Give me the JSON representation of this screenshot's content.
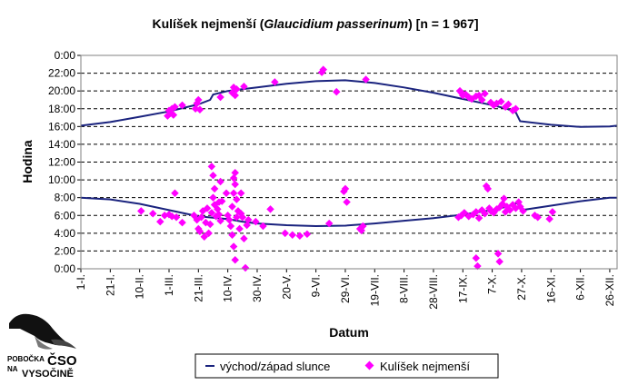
{
  "chart_data": {
    "type": "scatter",
    "title_prefix": "Kulíšek nejmenší (",
    "title_italic": "Glaucidium passerinum",
    "title_suffix": ") [n = 1 967]",
    "xlabel": "Datum",
    "ylabel": "Hodina",
    "ylim": [
      0,
      24
    ],
    "y_ticks": [
      {
        "v": 0,
        "label": "0:00"
      },
      {
        "v": 2,
        "label": "2:00"
      },
      {
        "v": 4,
        "label": "4:00"
      },
      {
        "v": 6,
        "label": "6:00"
      },
      {
        "v": 8,
        "label": "8:00"
      },
      {
        "v": 10,
        "label": "10:00"
      },
      {
        "v": 12,
        "label": "12:00"
      },
      {
        "v": 14,
        "label": "14:00"
      },
      {
        "v": 16,
        "label": "16:00"
      },
      {
        "v": 18,
        "label": "18:00"
      },
      {
        "v": 20,
        "label": "20:00"
      },
      {
        "v": 22,
        "label": "22:00"
      },
      {
        "v": 24,
        "label": "0:00"
      }
    ],
    "xlim": [
      1,
      366
    ],
    "x_ticks": [
      {
        "day": 1,
        "label": "1-I."
      },
      {
        "day": 21,
        "label": "21-I."
      },
      {
        "day": 41,
        "label": "10-II."
      },
      {
        "day": 61,
        "label": "1-III."
      },
      {
        "day": 81,
        "label": "21-III."
      },
      {
        "day": 101,
        "label": "10-IV."
      },
      {
        "day": 121,
        "label": "30-IV."
      },
      {
        "day": 141,
        "label": "20-V."
      },
      {
        "day": 161,
        "label": "9-VI."
      },
      {
        "day": 181,
        "label": "29-VI."
      },
      {
        "day": 201,
        "label": "19-VII."
      },
      {
        "day": 221,
        "label": "8-VIII."
      },
      {
        "day": 241,
        "label": "28-VIII."
      },
      {
        "day": 261,
        "label": "17-IX."
      },
      {
        "day": 281,
        "label": "7-X."
      },
      {
        "day": 301,
        "label": "27-X."
      },
      {
        "day": 321,
        "label": "16-XI."
      },
      {
        "day": 341,
        "label": "6-XII."
      },
      {
        "day": 361,
        "label": "26-XII."
      }
    ],
    "grid": "horizontal-dashed",
    "legend_position": "bottom",
    "series": [
      {
        "name": "východ/západ slunce",
        "color": "#1a237e",
        "sunrise": [
          [
            1,
            8.0
          ],
          [
            21,
            7.8
          ],
          [
            41,
            7.3
          ],
          [
            61,
            6.6
          ],
          [
            81,
            5.9
          ],
          [
            101,
            5.6
          ],
          [
            111,
            5.3
          ],
          [
            121,
            5.1
          ],
          [
            141,
            4.9
          ],
          [
            161,
            4.8
          ],
          [
            181,
            4.85
          ],
          [
            201,
            5.1
          ],
          [
            221,
            5.4
          ],
          [
            241,
            5.7
          ],
          [
            261,
            6.1
          ],
          [
            281,
            6.6
          ],
          [
            291,
            7.0
          ],
          [
            298,
            7.4
          ],
          [
            301,
            6.6
          ],
          [
            321,
            7.1
          ],
          [
            341,
            7.6
          ],
          [
            361,
            8.0
          ],
          [
            366,
            8.0
          ]
        ],
        "sunset": [
          [
            1,
            16.1
          ],
          [
            21,
            16.5
          ],
          [
            41,
            17.1
          ],
          [
            61,
            17.7
          ],
          [
            81,
            18.5
          ],
          [
            89,
            19.0
          ],
          [
            91,
            19.6
          ],
          [
            101,
            20.0
          ],
          [
            121,
            20.4
          ],
          [
            141,
            20.8
          ],
          [
            161,
            21.1
          ],
          [
            181,
            21.2
          ],
          [
            201,
            20.9
          ],
          [
            221,
            20.4
          ],
          [
            241,
            19.8
          ],
          [
            261,
            19.1
          ],
          [
            281,
            18.4
          ],
          [
            291,
            18.0
          ],
          [
            297,
            17.6
          ],
          [
            300,
            16.6
          ],
          [
            321,
            16.2
          ],
          [
            341,
            15.95
          ],
          [
            361,
            16.0
          ],
          [
            366,
            16.1
          ]
        ]
      },
      {
        "name": "Kulíšek nejmenší",
        "color": "#ff00ff",
        "points": [
          [
            42,
            6.5
          ],
          [
            50,
            6.2
          ],
          [
            55,
            5.3
          ],
          [
            58,
            6.0
          ],
          [
            61,
            6.1
          ],
          [
            63,
            5.9
          ],
          [
            65,
            8.5
          ],
          [
            66,
            5.8
          ],
          [
            70,
            5.2
          ],
          [
            60,
            17.2
          ],
          [
            61,
            17.8
          ],
          [
            62,
            17.5
          ],
          [
            63,
            18.0
          ],
          [
            64,
            17.3
          ],
          [
            65,
            18.2
          ],
          [
            70,
            18.4
          ],
          [
            79,
            18.0
          ],
          [
            80,
            18.6
          ],
          [
            81,
            19.0
          ],
          [
            82,
            17.9
          ],
          [
            78,
            6.0
          ],
          [
            80,
            5.5
          ],
          [
            81,
            4.5
          ],
          [
            82,
            4.2
          ],
          [
            83,
            5.8
          ],
          [
            84,
            6.5
          ],
          [
            85,
            3.6
          ],
          [
            86,
            5.2
          ],
          [
            87,
            6.8
          ],
          [
            88,
            4.0
          ],
          [
            89,
            5.0
          ],
          [
            90,
            6.3
          ],
          [
            91,
            8.0
          ],
          [
            92,
            7.2
          ],
          [
            93,
            5.9
          ],
          [
            94,
            6.7
          ],
          [
            95,
            6.1
          ],
          [
            96,
            5.4
          ],
          [
            97,
            7.6
          ],
          [
            90,
            11.5
          ],
          [
            91,
            10.5
          ],
          [
            92,
            9.0
          ],
          [
            95,
            7.5
          ],
          [
            96,
            9.8
          ],
          [
            100,
            8.5
          ],
          [
            101,
            6.0
          ],
          [
            102,
            5.5
          ],
          [
            103,
            4.8
          ],
          [
            104,
            3.8
          ],
          [
            105,
            2.5
          ],
          [
            106,
            1.0
          ],
          [
            104,
            7.0
          ],
          [
            105,
            8.5
          ],
          [
            105,
            10.2
          ],
          [
            106,
            9.5
          ],
          [
            106,
            10.8
          ],
          [
            107,
            7.8
          ],
          [
            107,
            5.8
          ],
          [
            108,
            6.5
          ],
          [
            109,
            4.5
          ],
          [
            110,
            6.2
          ],
          [
            111,
            5.8
          ],
          [
            112,
            3.4
          ],
          [
            113,
            0.1
          ],
          [
            114,
            4.9
          ],
          [
            115,
            5.5
          ],
          [
            110,
            8.5
          ],
          [
            104,
            19.8
          ],
          [
            105,
            20.4
          ],
          [
            106,
            19.5
          ],
          [
            107,
            20.2
          ],
          [
            112,
            20.5
          ],
          [
            96,
            19.3
          ],
          [
            120,
            5.3
          ],
          [
            125,
            4.8
          ],
          [
            130,
            6.7
          ],
          [
            133,
            21.0
          ],
          [
            140,
            4.0
          ],
          [
            145,
            3.8
          ],
          [
            150,
            3.7
          ],
          [
            155,
            3.9
          ],
          [
            170,
            5.1
          ],
          [
            165,
            22.1
          ],
          [
            166,
            22.4
          ],
          [
            175,
            19.9
          ],
          [
            180,
            8.7
          ],
          [
            181,
            9.0
          ],
          [
            182,
            7.5
          ],
          [
            191,
            4.5
          ],
          [
            192,
            4.3
          ],
          [
            193,
            4.8
          ],
          [
            195,
            21.3
          ],
          [
            259,
            20.0
          ],
          [
            260,
            19.8
          ],
          [
            261,
            19.5
          ],
          [
            263,
            19.6
          ],
          [
            265,
            19.3
          ],
          [
            267,
            19.1
          ],
          [
            270,
            19.4
          ],
          [
            272,
            19.5
          ],
          [
            274,
            19.0
          ],
          [
            276,
            19.7
          ],
          [
            280,
            18.7
          ],
          [
            282,
            18.4
          ],
          [
            284,
            18.6
          ],
          [
            287,
            18.8
          ],
          [
            290,
            18.2
          ],
          [
            292,
            18.5
          ],
          [
            295,
            17.8
          ],
          [
            297,
            18.0
          ],
          [
            258,
            5.8
          ],
          [
            260,
            6.0
          ],
          [
            262,
            6.3
          ],
          [
            265,
            5.9
          ],
          [
            268,
            6.1
          ],
          [
            270,
            6.4
          ],
          [
            272,
            5.7
          ],
          [
            274,
            6.6
          ],
          [
            276,
            6.2
          ],
          [
            277,
            9.3
          ],
          [
            278,
            9.0
          ],
          [
            279,
            6.8
          ],
          [
            280,
            6.5
          ],
          [
            282,
            6.3
          ],
          [
            284,
            6.7
          ],
          [
            286,
            6.9
          ],
          [
            288,
            7.3
          ],
          [
            289,
            7.9
          ],
          [
            290,
            6.4
          ],
          [
            291,
            7.0
          ],
          [
            293,
            6.6
          ],
          [
            295,
            7.2
          ],
          [
            297,
            6.8
          ],
          [
            299,
            7.5
          ],
          [
            300,
            7.0
          ],
          [
            302,
            6.5
          ],
          [
            310,
            6.0
          ],
          [
            312,
            5.8
          ],
          [
            320,
            5.6
          ],
          [
            322,
            6.4
          ],
          [
            270,
            1.2
          ],
          [
            271,
            0.3
          ],
          [
            285,
            1.7
          ],
          [
            286,
            0.8
          ]
        ]
      }
    ]
  },
  "logo": {
    "line1": "POBOČKA",
    "big": "ČSO",
    "line2": "NA",
    "line3": "VYSOČINĚ"
  }
}
